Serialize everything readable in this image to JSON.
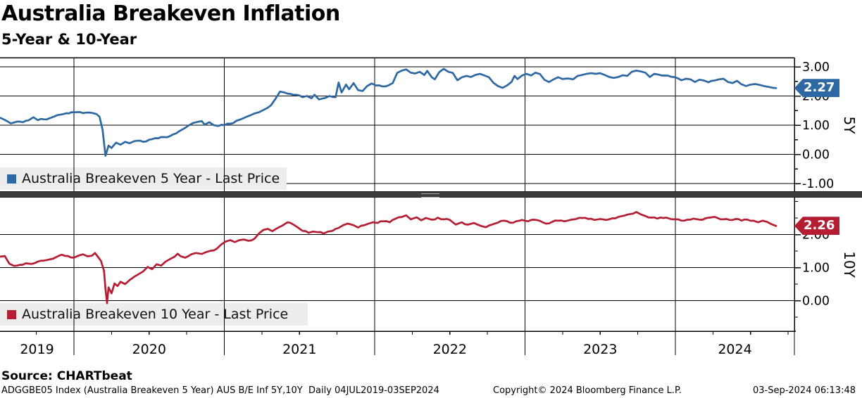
{
  "header": {
    "title": "Australia Breakeven Inflation",
    "subtitle": "5-Year & 10-Year"
  },
  "source_line": "Source: CHARTbeat",
  "footer": {
    "security_info": "ADGGBE05 Index (Australia Breakeven 5 Year) AUS B/E Inf 5Y,10Y  Daily 04JUL2019-03SEP2024",
    "copyright": "Copyright© 2024 Bloomberg Finance L.P.",
    "timestamp": "03-Sep-2024 06:13:48"
  },
  "x_axis": {
    "year_labels": [
      "2019",
      "2020",
      "2021",
      "2022",
      "2023",
      "2024"
    ],
    "range_note": "04JUL2019-03SEP2024"
  },
  "colors": {
    "line_5y": "#2d68a2",
    "line_10y": "#b51e32",
    "legend_bg": "#ededed",
    "grid": "#000000",
    "splitter": "#3d3d3d"
  },
  "chart_data": [
    {
      "type": "line",
      "panel": "top",
      "series_name": "Australia Breakeven 5 Year",
      "legend_label": "Australia Breakeven 5 Year - Last Price",
      "axis_label": "5Y",
      "last_price": "2.27",
      "line_color": "#2d68a2",
      "x_unit": "decimal_year",
      "xlim": [
        2019.5,
        2024.79
      ],
      "ylim": [
        -1.26,
        3.31
      ],
      "yticks": [
        3,
        2,
        1,
        0,
        -1
      ],
      "ytick_labels": [
        "3.00",
        "2.00",
        "1.00",
        "0.00",
        "-1.00"
      ],
      "points": [
        [
          2019.51,
          1.25
        ],
        [
          2019.54,
          1.18
        ],
        [
          2019.58,
          1.06
        ],
        [
          2019.62,
          1.12
        ],
        [
          2019.66,
          1.1
        ],
        [
          2019.7,
          1.17
        ],
        [
          2019.73,
          1.27
        ],
        [
          2019.76,
          1.17
        ],
        [
          2019.8,
          1.2
        ],
        [
          2019.84,
          1.24
        ],
        [
          2019.87,
          1.3
        ],
        [
          2019.91,
          1.36
        ],
        [
          2019.95,
          1.41
        ],
        [
          2020.0,
          1.44
        ],
        [
          2020.04,
          1.45
        ],
        [
          2020.08,
          1.43
        ],
        [
          2020.12,
          1.42
        ],
        [
          2020.15,
          1.38
        ],
        [
          2020.17,
          1.29
        ],
        [
          2020.19,
          0.85
        ],
        [
          2020.21,
          -0.05
        ],
        [
          2020.23,
          0.3
        ],
        [
          2020.25,
          0.22
        ],
        [
          2020.28,
          0.4
        ],
        [
          2020.31,
          0.33
        ],
        [
          2020.34,
          0.43
        ],
        [
          2020.37,
          0.38
        ],
        [
          2020.4,
          0.45
        ],
        [
          2020.44,
          0.47
        ],
        [
          2020.48,
          0.44
        ],
        [
          2020.52,
          0.52
        ],
        [
          2020.56,
          0.55
        ],
        [
          2020.6,
          0.59
        ],
        [
          2020.64,
          0.63
        ],
        [
          2020.68,
          0.72
        ],
        [
          2020.72,
          0.85
        ],
        [
          2020.76,
          0.98
        ],
        [
          2020.79,
          1.07
        ],
        [
          2020.82,
          1.11
        ],
        [
          2020.85,
          1.14
        ],
        [
          2020.87,
          1.02
        ],
        [
          2020.9,
          1.1
        ],
        [
          2020.93,
          1.0
        ],
        [
          2020.96,
          0.97
        ],
        [
          2021.0,
          1.0
        ],
        [
          2021.04,
          1.05
        ],
        [
          2021.08,
          1.15
        ],
        [
          2021.11,
          1.2
        ],
        [
          2021.14,
          1.27
        ],
        [
          2021.17,
          1.33
        ],
        [
          2021.2,
          1.4
        ],
        [
          2021.23,
          1.44
        ],
        [
          2021.26,
          1.52
        ],
        [
          2021.29,
          1.6
        ],
        [
          2021.31,
          1.68
        ],
        [
          2021.34,
          1.9
        ],
        [
          2021.37,
          2.15
        ],
        [
          2021.4,
          2.12
        ],
        [
          2021.44,
          2.07
        ],
        [
          2021.48,
          2.04
        ],
        [
          2021.52,
          1.96
        ],
        [
          2021.55,
          2.0
        ],
        [
          2021.58,
          1.92
        ],
        [
          2021.6,
          2.04
        ],
        [
          2021.63,
          1.88
        ],
        [
          2021.67,
          1.93
        ],
        [
          2021.7,
          2.0
        ],
        [
          2021.74,
          1.96
        ],
        [
          2021.76,
          2.46
        ],
        [
          2021.78,
          2.12
        ],
        [
          2021.81,
          2.39
        ],
        [
          2021.83,
          2.23
        ],
        [
          2021.86,
          2.44
        ],
        [
          2021.89,
          2.2
        ],
        [
          2021.92,
          2.17
        ],
        [
          2021.95,
          2.34
        ],
        [
          2021.98,
          2.43
        ],
        [
          2022.01,
          2.36
        ],
        [
          2022.05,
          2.33
        ],
        [
          2022.09,
          2.36
        ],
        [
          2022.12,
          2.44
        ],
        [
          2022.15,
          2.79
        ],
        [
          2022.18,
          2.87
        ],
        [
          2022.21,
          2.91
        ],
        [
          2022.24,
          2.8
        ],
        [
          2022.27,
          2.77
        ],
        [
          2022.3,
          2.83
        ],
        [
          2022.33,
          2.72
        ],
        [
          2022.35,
          2.86
        ],
        [
          2022.38,
          2.64
        ],
        [
          2022.4,
          2.57
        ],
        [
          2022.43,
          2.82
        ],
        [
          2022.46,
          2.93
        ],
        [
          2022.49,
          2.83
        ],
        [
          2022.52,
          2.79
        ],
        [
          2022.55,
          2.54
        ],
        [
          2022.58,
          2.64
        ],
        [
          2022.61,
          2.69
        ],
        [
          2022.64,
          2.65
        ],
        [
          2022.67,
          2.72
        ],
        [
          2022.7,
          2.76
        ],
        [
          2022.73,
          2.7
        ],
        [
          2022.76,
          2.64
        ],
        [
          2022.79,
          2.45
        ],
        [
          2022.82,
          2.34
        ],
        [
          2022.85,
          2.28
        ],
        [
          2022.88,
          2.36
        ],
        [
          2022.91,
          2.48
        ],
        [
          2022.93,
          2.69
        ],
        [
          2022.95,
          2.58
        ],
        [
          2022.98,
          2.7
        ],
        [
          2023.01,
          2.76
        ],
        [
          2023.04,
          2.7
        ],
        [
          2023.07,
          2.8
        ],
        [
          2023.1,
          2.75
        ],
        [
          2023.13,
          2.55
        ],
        [
          2023.16,
          2.48
        ],
        [
          2023.19,
          2.57
        ],
        [
          2023.22,
          2.64
        ],
        [
          2023.25,
          2.58
        ],
        [
          2023.28,
          2.6
        ],
        [
          2023.32,
          2.57
        ],
        [
          2023.35,
          2.69
        ],
        [
          2023.38,
          2.72
        ],
        [
          2023.41,
          2.76
        ],
        [
          2023.44,
          2.78
        ],
        [
          2023.47,
          2.76
        ],
        [
          2023.5,
          2.78
        ],
        [
          2023.53,
          2.72
        ],
        [
          2023.56,
          2.65
        ],
        [
          2023.59,
          2.62
        ],
        [
          2023.62,
          2.65
        ],
        [
          2023.65,
          2.71
        ],
        [
          2023.68,
          2.69
        ],
        [
          2023.71,
          2.83
        ],
        [
          2023.74,
          2.87
        ],
        [
          2023.77,
          2.84
        ],
        [
          2023.8,
          2.8
        ],
        [
          2023.83,
          2.65
        ],
        [
          2023.86,
          2.76
        ],
        [
          2023.89,
          2.73
        ],
        [
          2023.93,
          2.7
        ],
        [
          2023.97,
          2.66
        ],
        [
          2024.0,
          2.64
        ],
        [
          2024.04,
          2.54
        ],
        [
          2024.07,
          2.59
        ],
        [
          2024.1,
          2.57
        ],
        [
          2024.13,
          2.48
        ],
        [
          2024.16,
          2.56
        ],
        [
          2024.19,
          2.53
        ],
        [
          2024.22,
          2.47
        ],
        [
          2024.26,
          2.53
        ],
        [
          2024.29,
          2.57
        ],
        [
          2024.32,
          2.59
        ],
        [
          2024.35,
          2.48
        ],
        [
          2024.38,
          2.44
        ],
        [
          2024.41,
          2.52
        ],
        [
          2024.44,
          2.4
        ],
        [
          2024.47,
          2.34
        ],
        [
          2024.5,
          2.39
        ],
        [
          2024.53,
          2.41
        ],
        [
          2024.56,
          2.38
        ],
        [
          2024.59,
          2.34
        ],
        [
          2024.62,
          2.31
        ],
        [
          2024.65,
          2.28
        ],
        [
          2024.67,
          2.27
        ]
      ]
    },
    {
      "type": "line",
      "panel": "bottom",
      "series_name": "Australia Breakeven 10 Year",
      "legend_label": "Australia Breakeven 10 Year - Last Price",
      "axis_label": "10Y",
      "last_price": "2.26",
      "line_color": "#b51e32",
      "x_unit": "decimal_year",
      "xlim": [
        2019.5,
        2024.79
      ],
      "ylim": [
        -0.93,
        3.1
      ],
      "yticks": [
        2,
        1,
        0
      ],
      "ytick_labels": [
        "2.00",
        "1.00",
        "0.00"
      ],
      "points": [
        [
          2019.51,
          1.33
        ],
        [
          2019.54,
          1.35
        ],
        [
          2019.57,
          1.12
        ],
        [
          2019.6,
          1.05
        ],
        [
          2019.64,
          1.08
        ],
        [
          2019.68,
          1.13
        ],
        [
          2019.72,
          1.11
        ],
        [
          2019.76,
          1.18
        ],
        [
          2019.8,
          1.21
        ],
        [
          2019.84,
          1.25
        ],
        [
          2019.88,
          1.31
        ],
        [
          2019.92,
          1.39
        ],
        [
          2019.96,
          1.35
        ],
        [
          2020.0,
          1.3
        ],
        [
          2020.03,
          1.36
        ],
        [
          2020.06,
          1.4
        ],
        [
          2020.09,
          1.34
        ],
        [
          2020.12,
          1.36
        ],
        [
          2020.14,
          1.44
        ],
        [
          2020.16,
          1.32
        ],
        [
          2020.18,
          1.2
        ],
        [
          2020.2,
          0.9
        ],
        [
          2020.21,
          0.35
        ],
        [
          2020.22,
          -0.08
        ],
        [
          2020.23,
          0.4
        ],
        [
          2020.25,
          0.22
        ],
        [
          2020.27,
          0.52
        ],
        [
          2020.29,
          0.44
        ],
        [
          2020.31,
          0.57
        ],
        [
          2020.34,
          0.5
        ],
        [
          2020.37,
          0.62
        ],
        [
          2020.4,
          0.72
        ],
        [
          2020.43,
          0.8
        ],
        [
          2020.46,
          0.88
        ],
        [
          2020.49,
          1.02
        ],
        [
          2020.52,
          0.95
        ],
        [
          2020.55,
          1.1
        ],
        [
          2020.58,
          1.06
        ],
        [
          2020.61,
          1.18
        ],
        [
          2020.64,
          1.26
        ],
        [
          2020.67,
          1.33
        ],
        [
          2020.69,
          1.42
        ],
        [
          2020.71,
          1.34
        ],
        [
          2020.74,
          1.3
        ],
        [
          2020.78,
          1.4
        ],
        [
          2020.81,
          1.44
        ],
        [
          2020.85,
          1.41
        ],
        [
          2020.88,
          1.47
        ],
        [
          2020.91,
          1.51
        ],
        [
          2020.95,
          1.57
        ],
        [
          2020.98,
          1.7
        ],
        [
          2021.01,
          1.79
        ],
        [
          2021.04,
          1.83
        ],
        [
          2021.07,
          1.77
        ],
        [
          2021.1,
          1.83
        ],
        [
          2021.13,
          1.85
        ],
        [
          2021.16,
          1.81
        ],
        [
          2021.2,
          1.87
        ],
        [
          2021.23,
          2.03
        ],
        [
          2021.26,
          2.14
        ],
        [
          2021.29,
          2.17
        ],
        [
          2021.32,
          2.1
        ],
        [
          2021.36,
          2.21
        ],
        [
          2021.39,
          2.28
        ],
        [
          2021.42,
          2.37
        ],
        [
          2021.46,
          2.3
        ],
        [
          2021.49,
          2.21
        ],
        [
          2021.52,
          2.11
        ],
        [
          2021.56,
          2.05
        ],
        [
          2021.59,
          2.09
        ],
        [
          2021.62,
          2.07
        ],
        [
          2021.66,
          2.03
        ],
        [
          2021.69,
          2.09
        ],
        [
          2021.72,
          2.11
        ],
        [
          2021.76,
          2.2
        ],
        [
          2021.79,
          2.28
        ],
        [
          2021.82,
          2.33
        ],
        [
          2021.86,
          2.28
        ],
        [
          2021.89,
          2.21
        ],
        [
          2021.93,
          2.28
        ],
        [
          2021.96,
          2.33
        ],
        [
          2021.99,
          2.37
        ],
        [
          2022.02,
          2.35
        ],
        [
          2022.06,
          2.4
        ],
        [
          2022.1,
          2.37
        ],
        [
          2022.14,
          2.48
        ],
        [
          2022.18,
          2.53
        ],
        [
          2022.21,
          2.58
        ],
        [
          2022.24,
          2.46
        ],
        [
          2022.28,
          2.52
        ],
        [
          2022.31,
          2.43
        ],
        [
          2022.34,
          2.5
        ],
        [
          2022.38,
          2.45
        ],
        [
          2022.42,
          2.51
        ],
        [
          2022.46,
          2.46
        ],
        [
          2022.5,
          2.44
        ],
        [
          2022.54,
          2.3
        ],
        [
          2022.58,
          2.37
        ],
        [
          2022.62,
          2.3
        ],
        [
          2022.66,
          2.35
        ],
        [
          2022.7,
          2.27
        ],
        [
          2022.74,
          2.22
        ],
        [
          2022.78,
          2.3
        ],
        [
          2022.82,
          2.36
        ],
        [
          2022.86,
          2.42
        ],
        [
          2022.9,
          2.36
        ],
        [
          2022.94,
          2.4
        ],
        [
          2022.98,
          2.44
        ],
        [
          2023.02,
          2.4
        ],
        [
          2023.06,
          2.45
        ],
        [
          2023.1,
          2.41
        ],
        [
          2023.14,
          2.33
        ],
        [
          2023.18,
          2.38
        ],
        [
          2023.22,
          2.42
        ],
        [
          2023.26,
          2.4
        ],
        [
          2023.3,
          2.44
        ],
        [
          2023.34,
          2.47
        ],
        [
          2023.38,
          2.5
        ],
        [
          2023.42,
          2.47
        ],
        [
          2023.46,
          2.44
        ],
        [
          2023.5,
          2.47
        ],
        [
          2023.54,
          2.44
        ],
        [
          2023.58,
          2.49
        ],
        [
          2023.62,
          2.53
        ],
        [
          2023.66,
          2.57
        ],
        [
          2023.7,
          2.62
        ],
        [
          2023.74,
          2.68
        ],
        [
          2023.77,
          2.61
        ],
        [
          2023.8,
          2.56
        ],
        [
          2023.84,
          2.51
        ],
        [
          2023.88,
          2.48
        ],
        [
          2023.92,
          2.5
        ],
        [
          2023.96,
          2.48
        ],
        [
          2024.0,
          2.46
        ],
        [
          2024.04,
          2.42
        ],
        [
          2024.08,
          2.45
        ],
        [
          2024.12,
          2.48
        ],
        [
          2024.16,
          2.45
        ],
        [
          2024.2,
          2.49
        ],
        [
          2024.24,
          2.52
        ],
        [
          2024.28,
          2.5
        ],
        [
          2024.32,
          2.46
        ],
        [
          2024.36,
          2.44
        ],
        [
          2024.4,
          2.47
        ],
        [
          2024.44,
          2.42
        ],
        [
          2024.48,
          2.45
        ],
        [
          2024.52,
          2.42
        ],
        [
          2024.55,
          2.37
        ],
        [
          2024.58,
          2.42
        ],
        [
          2024.61,
          2.38
        ],
        [
          2024.64,
          2.31
        ],
        [
          2024.67,
          2.26
        ]
      ]
    }
  ]
}
